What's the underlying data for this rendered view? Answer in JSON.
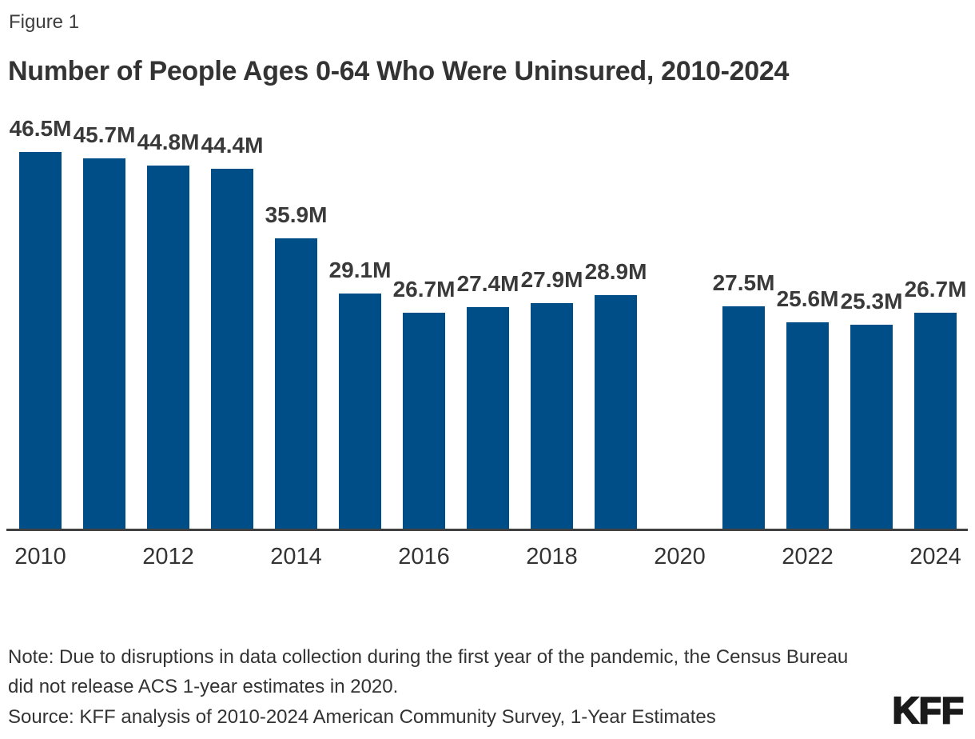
{
  "figure": {
    "label": "Figure 1",
    "title": "Number of People Ages 0-64 Who Were Uninsured, 2010-2024"
  },
  "chart_data": {
    "type": "bar",
    "title": "Number of People Ages 0-64 Who Were Uninsured, 2010-2024",
    "categories": [
      "2010",
      "2011",
      "2012",
      "2013",
      "2014",
      "2015",
      "2016",
      "2017",
      "2018",
      "2019",
      "2020",
      "2021",
      "2022",
      "2023",
      "2024"
    ],
    "values": [
      46.5,
      45.7,
      44.8,
      44.4,
      35.9,
      29.1,
      26.7,
      27.4,
      27.9,
      28.9,
      null,
      27.5,
      25.6,
      25.3,
      26.7
    ],
    "data_labels": [
      "46.5M",
      "45.7M",
      "44.8M",
      "44.4M",
      "35.9M",
      "29.1M",
      "26.7M",
      "27.4M",
      "27.9M",
      "28.9M",
      null,
      "27.5M",
      "25.6M",
      "25.3M",
      "26.7M"
    ],
    "x_tick_labels": [
      "2010",
      "2012",
      "2014",
      "2016",
      "2018",
      "2020",
      "2022",
      "2024"
    ],
    "unit": "M",
    "ylim": [
      0,
      46.5
    ],
    "grid": false,
    "legend": "none",
    "bar_color": "#004e87",
    "axis_line_color": "#404040",
    "missing_data_note": "no bar shown for 2020"
  },
  "footer": {
    "note": "Note: Due to disruptions in data collection during the first year of the pandemic, the Census Bureau did not release ACS 1-year estimates in 2020.",
    "source": "Source: KFF analysis of 2010-2024 American Community Survey, 1-Year Estimates",
    "logo_text": "KFF"
  }
}
